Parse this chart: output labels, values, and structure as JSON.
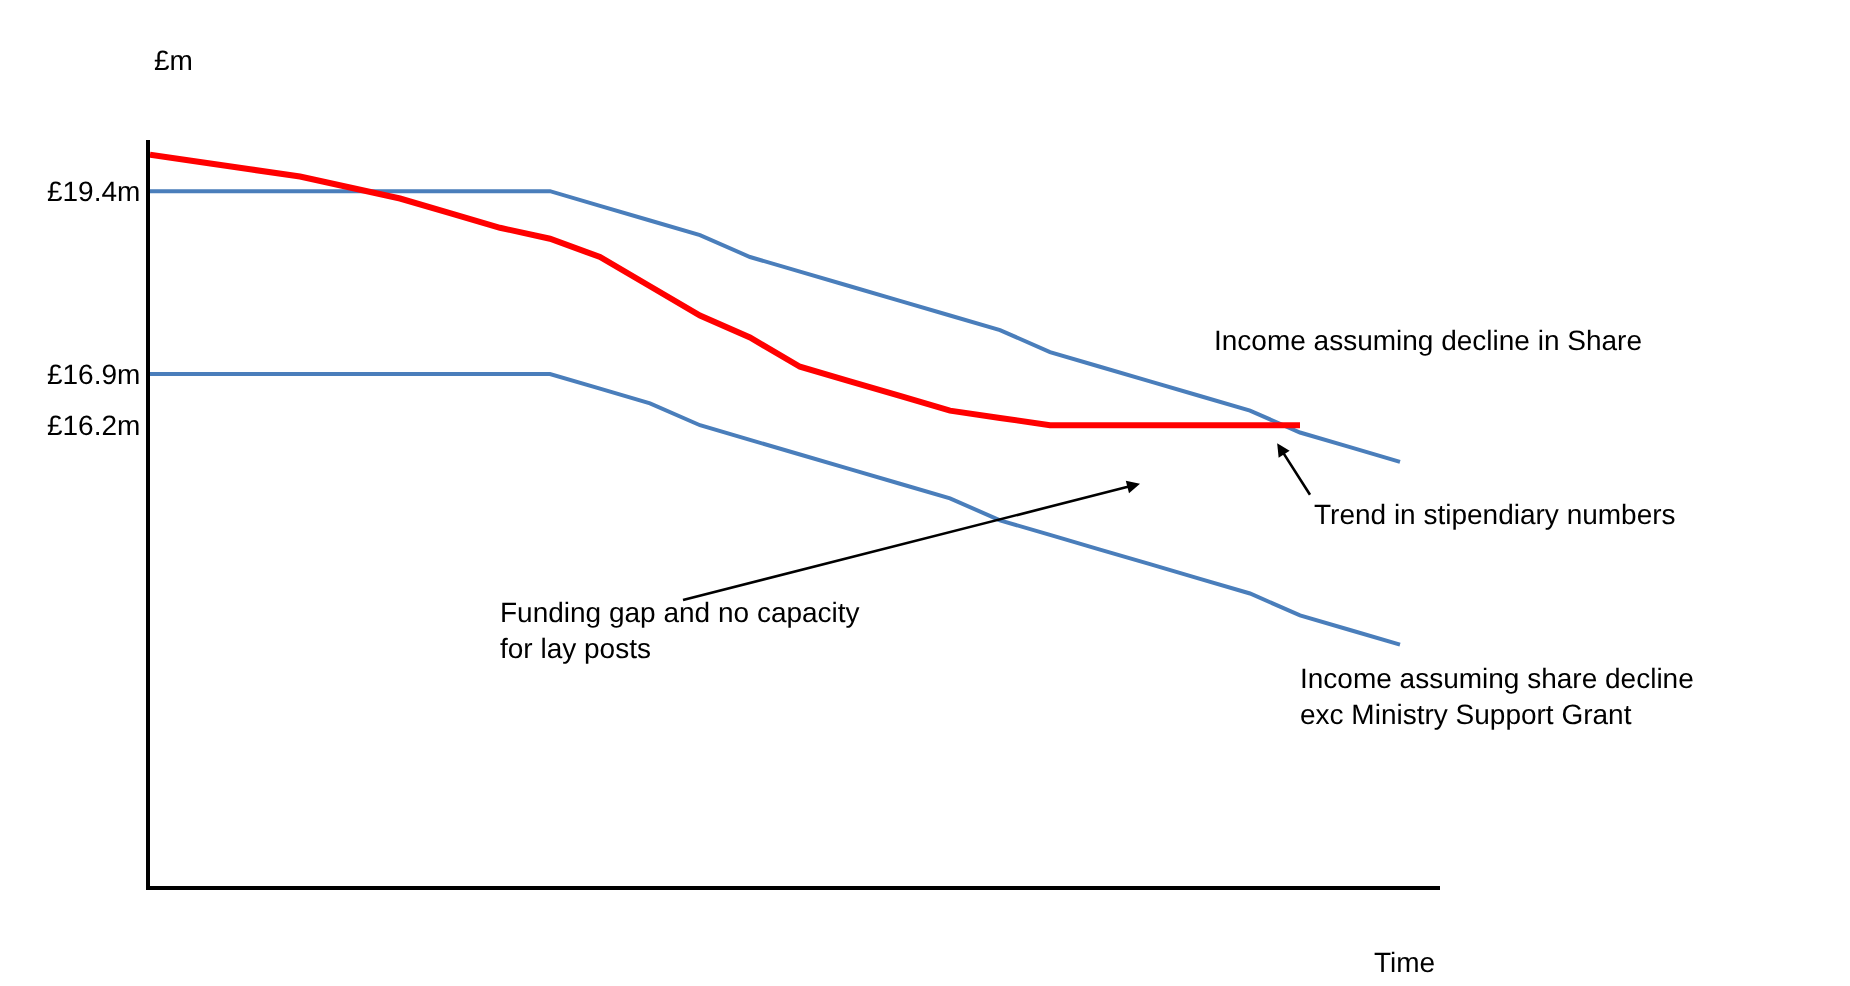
{
  "chart_data": {
    "type": "line",
    "ylabel": "£m",
    "xlabel": "Time",
    "categories": [
      null,
      null,
      null,
      null,
      null,
      null,
      null,
      null,
      null,
      null,
      null,
      null,
      null,
      null,
      null,
      null,
      null,
      null,
      null,
      null,
      null,
      null,
      null,
      null,
      null,
      null
    ],
    "series": [
      {
        "name": "Income assuming decline in Share",
        "color": "#4a7ebb",
        "values": [
          19.4,
          19.4,
          19.4,
          19.4,
          19.4,
          19.4,
          19.4,
          19.4,
          19.4,
          19.2,
          19.0,
          18.8,
          18.5,
          18.3,
          18.1,
          17.9,
          17.7,
          17.5,
          17.2,
          17.0,
          16.8,
          16.6,
          16.4,
          16.1,
          15.9,
          15.7
        ]
      },
      {
        "name": "Trend in stipendiary numbers",
        "color": "#ff0000",
        "values": [
          19.9,
          19.8,
          19.7,
          19.6,
          19.45,
          19.3,
          19.1,
          18.9,
          18.75,
          18.5,
          18.1,
          17.7,
          17.4,
          17.0,
          16.8,
          16.6,
          16.4,
          16.3,
          16.2,
          16.2,
          16.2,
          16.2,
          16.2,
          16.2,
          null,
          null
        ]
      },
      {
        "name": "Income assuming share decline\nexc Ministry Support Grant",
        "color": "#4a7ebb",
        "values": [
          16.9,
          16.9,
          16.9,
          16.9,
          16.9,
          16.9,
          16.9,
          16.9,
          16.9,
          16.7,
          16.5,
          16.2,
          16.0,
          15.8,
          15.6,
          15.4,
          15.2,
          14.9,
          14.7,
          14.5,
          14.3,
          14.1,
          13.9,
          13.6,
          13.4,
          13.2
        ]
      }
    ],
    "ylim": [
      9.9,
      20.1
    ],
    "yticks": [
      {
        "value": 19.4,
        "label": "£19.4m"
      },
      {
        "value": 16.9,
        "label": "£16.9m"
      },
      {
        "value": 16.2,
        "label": "£16.2m"
      }
    ],
    "tick_labels": "y",
    "annotations": [
      "Funding gap and no capacity\nfor lay posts"
    ],
    "legend": false,
    "marker": "none",
    "line_style": "solid"
  }
}
